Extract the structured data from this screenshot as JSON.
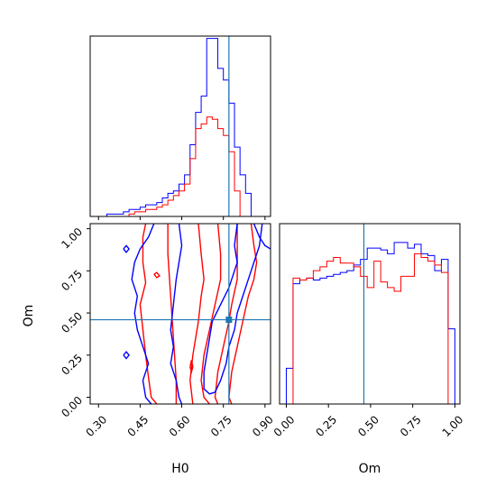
{
  "chart_data": {
    "type": "corner",
    "truth": {
      "H0": 0.77,
      "Om": 0.46
    },
    "panels": {
      "h0_hist": {
        "type": "histogram",
        "xlim": [
          0.27,
          0.92
        ],
        "bin_edges": [
          0.33,
          0.35,
          0.37,
          0.39,
          0.41,
          0.43,
          0.45,
          0.47,
          0.49,
          0.51,
          0.53,
          0.55,
          0.57,
          0.59,
          0.61,
          0.63,
          0.65,
          0.67,
          0.69,
          0.71,
          0.73,
          0.75,
          0.77,
          0.79,
          0.81,
          0.83,
          0.85
        ],
        "series": [
          {
            "name": "",
            "color": "#0000ff",
            "counts": [
              0.01,
              0.01,
              0.01,
              0.02,
              0.03,
              0.03,
              0.04,
              0.05,
              0.05,
              0.06,
              0.08,
              0.1,
              0.11,
              0.14,
              0.18,
              0.31,
              0.45,
              0.52,
              0.77,
              0.77,
              0.64,
              0.59,
              0.49,
              0.3,
              0.18,
              0.1
            ]
          },
          {
            "name": "",
            "color": "#ff0000",
            "counts": [
              0.0,
              0.0,
              0.0,
              0.0,
              0.01,
              0.02,
              0.02,
              0.03,
              0.03,
              0.04,
              0.05,
              0.07,
              0.09,
              0.11,
              0.14,
              0.25,
              0.38,
              0.4,
              0.43,
              0.42,
              0.38,
              0.35,
              0.28,
              0.11,
              0.0,
              0.0
            ]
          }
        ]
      },
      "h0_om_contour": {
        "type": "contour",
        "xlim": [
          0.27,
          0.92
        ],
        "ylim": [
          -0.04,
          1.03
        ],
        "series": [
          {
            "name": "",
            "color": "#ff0000",
            "contours": [
              [
                [
                  0.47,
                  1.03
                ],
                [
                  0.46,
                  0.95
                ],
                [
                  0.46,
                  0.8
                ],
                [
                  0.47,
                  0.68
                ],
                [
                  0.45,
                  0.55
                ],
                [
                  0.46,
                  0.4
                ],
                [
                  0.47,
                  0.25
                ],
                [
                  0.48,
                  0.12
                ],
                [
                  0.49,
                  0.0
                ],
                [
                  0.51,
                  -0.04
                ]
              ],
              [
                [
                  0.55,
                  1.03
                ],
                [
                  0.55,
                  0.85
                ],
                [
                  0.56,
                  0.6
                ],
                [
                  0.57,
                  0.35
                ],
                [
                  0.58,
                  0.1
                ],
                [
                  0.58,
                  -0.04
                ]
              ],
              [
                [
                  0.66,
                  1.03
                ],
                [
                  0.67,
                  0.85
                ],
                [
                  0.68,
                  0.7
                ],
                [
                  0.67,
                  0.6
                ],
                [
                  0.66,
                  0.45
                ],
                [
                  0.64,
                  0.25
                ],
                [
                  0.63,
                  0.1
                ],
                [
                  0.64,
                  -0.04
                ]
              ],
              [
                [
                  0.73,
                  1.03
                ],
                [
                  0.74,
                  0.85
                ],
                [
                  0.74,
                  0.7
                ],
                [
                  0.72,
                  0.55
                ],
                [
                  0.7,
                  0.4
                ],
                [
                  0.68,
                  0.25
                ],
                [
                  0.67,
                  0.1
                ],
                [
                  0.68,
                  0.0
                ],
                [
                  0.7,
                  -0.04
                ]
              ],
              [
                [
                  0.8,
                  1.03
                ],
                [
                  0.8,
                  0.85
                ],
                [
                  0.8,
                  0.7
                ],
                [
                  0.78,
                  0.55
                ],
                [
                  0.77,
                  0.45
                ],
                [
                  0.75,
                  0.3
                ],
                [
                  0.73,
                  0.15
                ],
                [
                  0.72,
                  0.0
                ],
                [
                  0.73,
                  -0.04
                ]
              ],
              [
                [
                  0.85,
                  1.03
                ],
                [
                  0.86,
                  0.9
                ],
                [
                  0.87,
                  0.8
                ],
                [
                  0.86,
                  0.7
                ],
                [
                  0.84,
                  0.6
                ],
                [
                  0.82,
                  0.45
                ],
                [
                  0.8,
                  0.3
                ],
                [
                  0.78,
                  0.15
                ],
                [
                  0.77,
                  0.0
                ],
                [
                  0.78,
                  -0.04
                ]
              ]
            ]
          },
          {
            "name": "",
            "color": "#0000ff",
            "contours": [
              [
                [
                  0.5,
                  1.03
                ],
                [
                  0.48,
                  0.95
                ],
                [
                  0.45,
                  0.88
                ],
                [
                  0.43,
                  0.8
                ],
                [
                  0.42,
                  0.7
                ],
                [
                  0.44,
                  0.6
                ],
                [
                  0.43,
                  0.5
                ],
                [
                  0.44,
                  0.4
                ],
                [
                  0.46,
                  0.3
                ],
                [
                  0.48,
                  0.2
                ],
                [
                  0.46,
                  0.1
                ],
                [
                  0.47,
                  0.0
                ],
                [
                  0.49,
                  -0.04
                ]
              ],
              [
                [
                  0.59,
                  1.03
                ],
                [
                  0.6,
                  0.9
                ],
                [
                  0.59,
                  0.8
                ],
                [
                  0.58,
                  0.7
                ],
                [
                  0.57,
                  0.55
                ],
                [
                  0.56,
                  0.4
                ],
                [
                  0.57,
                  0.3
                ],
                [
                  0.56,
                  0.2
                ],
                [
                  0.58,
                  0.1
                ],
                [
                  0.59,
                  0.0
                ],
                [
                  0.6,
                  -0.04
                ]
              ],
              [
                [
                  0.8,
                  1.03
                ],
                [
                  0.79,
                  0.9
                ],
                [
                  0.8,
                  0.8
                ],
                [
                  0.77,
                  0.65
                ],
                [
                  0.74,
                  0.55
                ],
                [
                  0.71,
                  0.45
                ],
                [
                  0.7,
                  0.35
                ],
                [
                  0.69,
                  0.25
                ],
                [
                  0.68,
                  0.15
                ],
                [
                  0.68,
                  0.05
                ],
                [
                  0.7,
                  0.02
                ],
                [
                  0.72,
                  0.03
                ]
              ],
              [
                [
                  0.72,
                  0.03
                ],
                [
                  0.74,
                  0.1
                ],
                [
                  0.76,
                  0.2
                ],
                [
                  0.77,
                  0.3
                ],
                [
                  0.79,
                  0.4
                ],
                [
                  0.8,
                  0.5
                ],
                [
                  0.82,
                  0.6
                ],
                [
                  0.84,
                  0.7
                ],
                [
                  0.86,
                  0.8
                ],
                [
                  0.88,
                  0.9
                ],
                [
                  0.89,
                  1.03
                ]
              ],
              [
                [
                  0.86,
                  1.03
                ],
                [
                  0.88,
                  0.95
                ],
                [
                  0.9,
                  0.9
                ],
                [
                  0.92,
                  0.88
                ]
              ]
            ]
          }
        ]
      },
      "om_hist": {
        "type": "histogram",
        "xlim": [
          -0.04,
          1.03
        ],
        "bin_edges": [
          0.0,
          0.04,
          0.08,
          0.12,
          0.16,
          0.2,
          0.24,
          0.28,
          0.32,
          0.36,
          0.4,
          0.44,
          0.48,
          0.52,
          0.56,
          0.6,
          0.64,
          0.68,
          0.72,
          0.76,
          0.8,
          0.84,
          0.88,
          0.92,
          0.96,
          1.0
        ],
        "series": [
          {
            "name": "",
            "color": "#0000ff",
            "counts": [
              0.19,
              0.64,
              0.66,
              0.67,
              0.66,
              0.67,
              0.68,
              0.69,
              0.7,
              0.71,
              0.74,
              0.77,
              0.83,
              0.83,
              0.82,
              0.8,
              0.86,
              0.86,
              0.83,
              0.85,
              0.8,
              0.79,
              0.71,
              0.77,
              0.4
            ]
          },
          {
            "name": "",
            "color": "#ff0000",
            "counts": [
              0.0,
              0.67,
              0.66,
              0.67,
              0.71,
              0.73,
              0.76,
              0.78,
              0.75,
              0.75,
              0.73,
              0.68,
              0.62,
              0.76,
              0.65,
              0.62,
              0.6,
              0.68,
              0.68,
              0.8,
              0.78,
              0.76,
              0.74,
              0.7,
              0.0
            ]
          }
        ]
      }
    },
    "axes": {
      "h0_ticks": [
        "0.30",
        "0.45",
        "0.60",
        "0.75",
        "0.90"
      ],
      "om_ticks": [
        "0.00",
        "0.25",
        "0.50",
        "0.75",
        "1.00"
      ],
      "xlabel_left": "H0",
      "xlabel_right": "Om",
      "ylabel_left": "Om"
    },
    "grid": false,
    "legend": "none"
  }
}
